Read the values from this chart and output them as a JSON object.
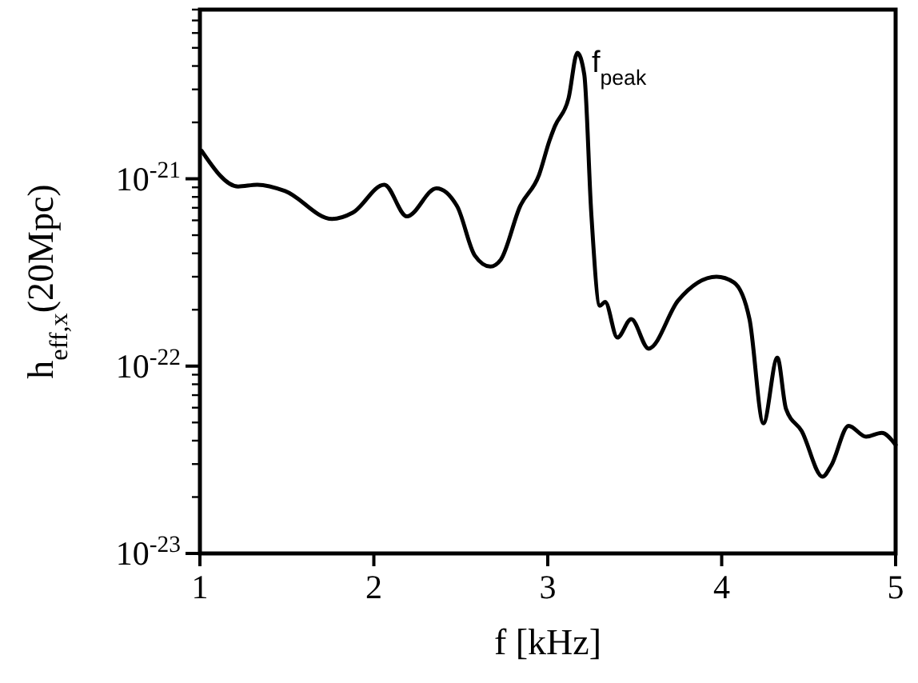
{
  "chart_data": {
    "type": "line",
    "xlabel": "f [kHz]",
    "ylabel": "h$_{eff,x}$(20Mpc)",
    "log": "y",
    "grid": false,
    "line_style": "solid",
    "xlim": [
      1,
      5
    ],
    "xticks": [
      1,
      2,
      3,
      4,
      5
    ],
    "ylim": [
      1e-23,
      8e-21
    ],
    "yticks": [
      {
        "value": 1e-23,
        "label": "10$^{-23}$"
      },
      {
        "value": 2e-23,
        "label": null
      },
      {
        "value": 3e-23,
        "label": null
      },
      {
        "value": 4e-23,
        "label": null
      },
      {
        "value": 5e-23,
        "label": null
      },
      {
        "value": 6e-23,
        "label": null
      },
      {
        "value": 7e-23,
        "label": null
      },
      {
        "value": 8e-23,
        "label": null
      },
      {
        "value": 9e-23,
        "label": null
      },
      {
        "value": 1e-22,
        "label": "10$^{-22}$"
      },
      {
        "value": 2e-22,
        "label": null
      },
      {
        "value": 3e-22,
        "label": null
      },
      {
        "value": 4e-22,
        "label": null
      },
      {
        "value": 5e-22,
        "label": null
      },
      {
        "value": 6e-22,
        "label": null
      },
      {
        "value": 7e-22,
        "label": null
      },
      {
        "value": 8e-22,
        "label": null
      },
      {
        "value": 9e-22,
        "label": null
      },
      {
        "value": 1e-21,
        "label": "10$^{-21}$"
      },
      {
        "value": 2e-21,
        "label": null
      },
      {
        "value": 3e-21,
        "label": null
      },
      {
        "value": 4e-21,
        "label": null
      },
      {
        "value": 5e-21,
        "label": null
      },
      {
        "value": 6e-21,
        "label": null
      },
      {
        "value": 7e-21,
        "label": null
      },
      {
        "value": 8e-21,
        "label": null
      }
    ],
    "annotations": [
      "f$_{peak}$"
    ],
    "series": [
      {
        "color": "#000000",
        "x": [
          1.01,
          1.22,
          1.33,
          1.49,
          1.76,
          1.88,
          2.06,
          2.19,
          2.36,
          2.48,
          2.58,
          2.67,
          2.73,
          2.84,
          2.95,
          3.01,
          3.04,
          3.12,
          3.17,
          3.21,
          3.25,
          3.3,
          3.33,
          3.4,
          3.48,
          3.58,
          3.75,
          3.97,
          4.07,
          4.16,
          4.24,
          4.32,
          4.37,
          4.46,
          4.58,
          4.63,
          4.73,
          4.83,
          4.92,
          5.0
        ],
        "values": [
          1.41e-21,
          9.1e-22,
          9.3e-22,
          8.6e-22,
          6.1e-22,
          6.6e-22,
          9.3e-22,
          6.3e-22,
          8.9e-22,
          7.1e-22,
          3.9e-22,
          3.4e-22,
          3.7e-22,
          7.1e-22,
          1.05e-21,
          1.6e-21,
          1.9e-21,
          2.7e-21,
          4.7e-21,
          3.6e-21,
          6.6e-22,
          2.1e-22,
          2.2e-22,
          1.42e-22,
          1.78e-22,
          1.24e-22,
          2.24e-22,
          3e-22,
          2.8e-22,
          1.78e-22,
          4.95e-23,
          1.11e-22,
          5.9e-23,
          4.5e-23,
          2.57e-23,
          2.95e-23,
          4.8e-23,
          4.2e-23,
          4.4e-23,
          3.8e-23
        ]
      }
    ]
  }
}
